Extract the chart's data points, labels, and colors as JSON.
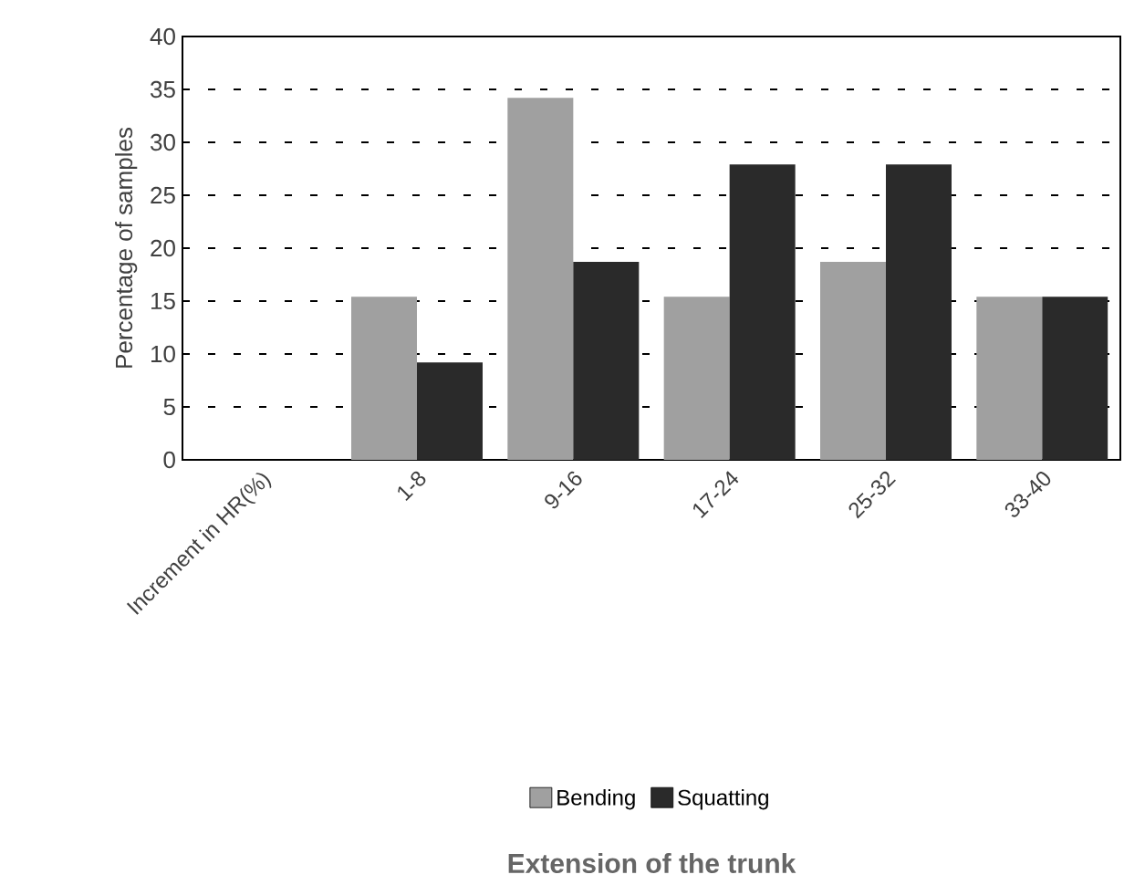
{
  "chart_data": {
    "type": "bar",
    "annotations": [
      "Extension of the trunk"
    ],
    "ylabel": "Percentage of samples",
    "categories": [
      "Increment in HR(%)",
      "1-8",
      "9-16",
      "17-24",
      "25-32",
      "33-40"
    ],
    "series": [
      {
        "name": "Bending",
        "color": "#a0a0a0",
        "values": [
          null,
          15.4,
          34.2,
          15.4,
          18.7,
          15.4
        ]
      },
      {
        "name": "Squatting",
        "color": "#2a2a2a",
        "values": [
          null,
          9.2,
          18.7,
          27.9,
          27.9,
          15.4
        ]
      }
    ],
    "ylim": [
      0,
      40
    ],
    "yticks": [
      0,
      5,
      10,
      15,
      20,
      25,
      30,
      35,
      40
    ],
    "grid": "y",
    "legend": "bottom"
  }
}
